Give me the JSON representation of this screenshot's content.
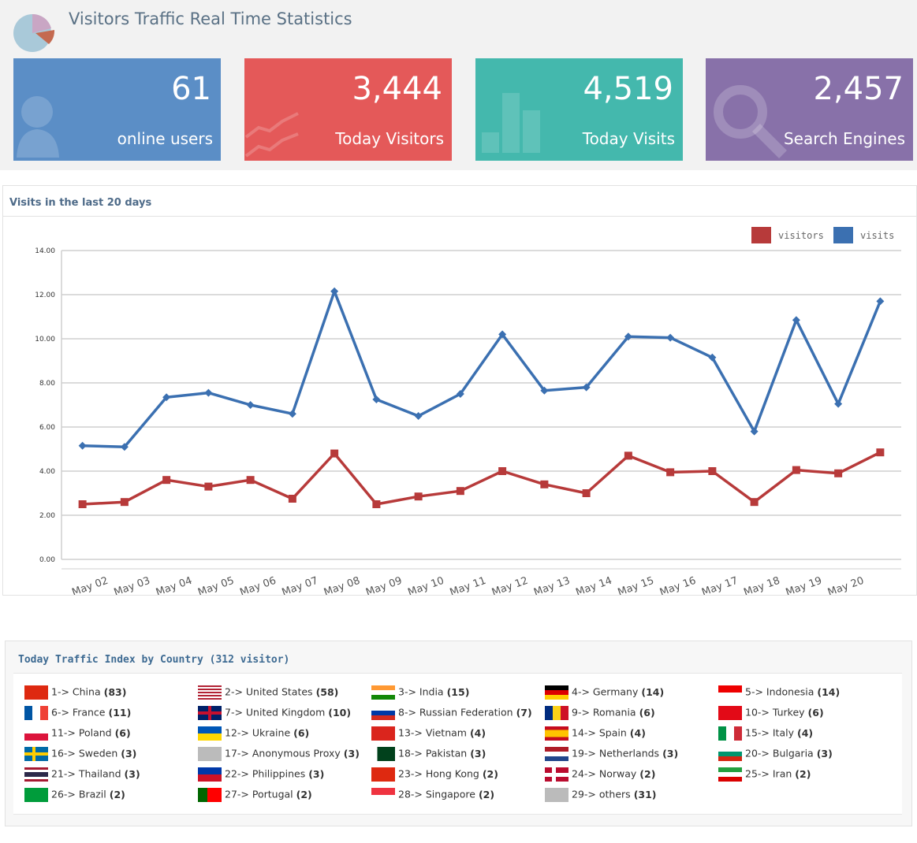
{
  "header": {
    "title": "Visitors Traffic Real Time Statistics"
  },
  "cards": [
    {
      "value": "61",
      "label": "online users"
    },
    {
      "value": "3,444",
      "label": "Today Visitors"
    },
    {
      "value": "4,519",
      "label": "Today Visits"
    },
    {
      "value": "2,457",
      "label": "Search Engines"
    }
  ],
  "chart_data": {
    "type": "line",
    "title": "Visits in the last 20 days",
    "categories": [
      null,
      "May 02",
      "May 03",
      "May 04",
      "May 05",
      "May 06",
      "May 07",
      "May 08",
      "May 09",
      "May 10",
      "May 11",
      "May 12",
      "May 13",
      "May 14",
      "May 15",
      "May 16",
      "May 17",
      "May 18",
      "May 19",
      "May 20"
    ],
    "series": [
      {
        "name": "visitors",
        "color": "#b73a3a",
        "values": [
          2.5,
          2.6,
          3.6,
          3.3,
          3.6,
          2.75,
          4.8,
          2.5,
          2.85,
          3.1,
          4.0,
          3.4,
          3.0,
          4.7,
          3.95,
          4.0,
          2.6,
          4.05,
          3.9,
          4.85
        ]
      },
      {
        "name": "visits",
        "color": "#3b70b1",
        "values": [
          5.15,
          5.1,
          7.35,
          7.55,
          7.0,
          6.6,
          12.15,
          7.25,
          6.5,
          7.5,
          10.2,
          7.65,
          7.8,
          10.1,
          10.05,
          9.15,
          5.8,
          10.85,
          7.05,
          11.7
        ]
      }
    ],
    "ylim": [
      0,
      14
    ],
    "yticks": [
      {
        "value": 0,
        "label": "0.00"
      },
      {
        "value": 2,
        "label": "2.00"
      },
      {
        "value": 4,
        "label": "4.00"
      },
      {
        "value": 6,
        "label": "6.00"
      },
      {
        "value": 8,
        "label": "8.00"
      },
      {
        "value": 10,
        "label": "10.00"
      },
      {
        "value": 12,
        "label": "12.00"
      },
      {
        "value": 14,
        "label": "14.00"
      }
    ],
    "grid": true,
    "legend": "top-right"
  },
  "countries": {
    "title": "Today Traffic Index by Country (312 visitor)",
    "items": [
      {
        "name": "1-> China",
        "count": "(83)"
      },
      {
        "name": "2-> United States",
        "count": "(58)"
      },
      {
        "name": "3-> India",
        "count": "(15)"
      },
      {
        "name": "4-> Germany",
        "count": "(14)"
      },
      {
        "name": "5-> Indonesia",
        "count": "(14)"
      },
      {
        "name": "6-> France",
        "count": "(11)"
      },
      {
        "name": "7-> United Kingdom",
        "count": "(10)"
      },
      {
        "name": "8-> Russian Federation",
        "count": "(7)"
      },
      {
        "name": "9-> Romania",
        "count": "(6)"
      },
      {
        "name": "10-> Turkey",
        "count": "(6)"
      },
      {
        "name": "11-> Poland",
        "count": "(6)"
      },
      {
        "name": "12-> Ukraine",
        "count": "(6)"
      },
      {
        "name": "13-> Vietnam",
        "count": "(4)"
      },
      {
        "name": "14-> Spain",
        "count": "(4)"
      },
      {
        "name": "15-> Italy",
        "count": "(4)"
      },
      {
        "name": "16-> Sweden",
        "count": "(3)"
      },
      {
        "name": "17-> Anonymous Proxy",
        "count": "(3)"
      },
      {
        "name": "18-> Pakistan",
        "count": "(3)"
      },
      {
        "name": "19-> Netherlands",
        "count": "(3)"
      },
      {
        "name": "20-> Bulgaria",
        "count": "(3)"
      },
      {
        "name": "21-> Thailand",
        "count": "(3)"
      },
      {
        "name": "22-> Philippines",
        "count": "(3)"
      },
      {
        "name": "23-> Hong Kong",
        "count": "(2)"
      },
      {
        "name": "24-> Norway",
        "count": "(2)"
      },
      {
        "name": "25-> Iran",
        "count": "(2)"
      },
      {
        "name": "26-> Brazil",
        "count": "(2)"
      },
      {
        "name": "27-> Portugal",
        "count": "(2)"
      },
      {
        "name": "28-> Singapore",
        "count": "(2)"
      },
      {
        "name": "29-> others",
        "count": "(31)"
      }
    ]
  }
}
